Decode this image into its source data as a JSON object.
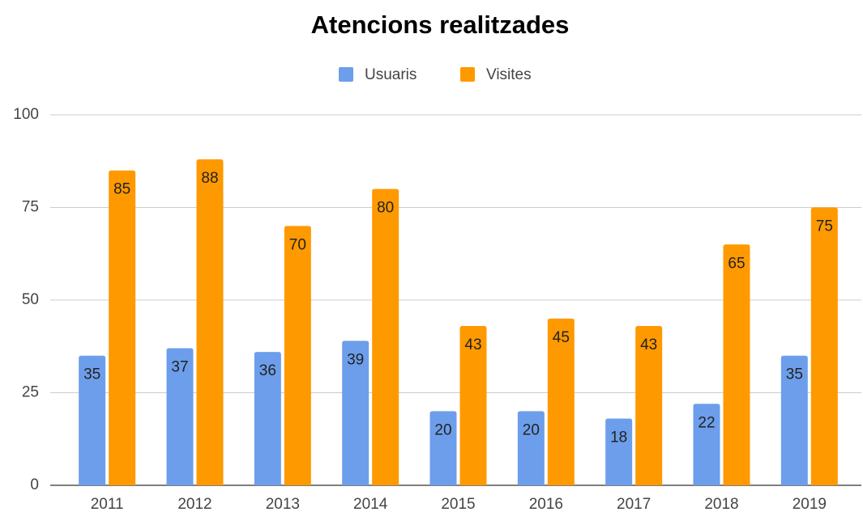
{
  "chart_data": {
    "type": "bar",
    "title": "Atencions realitzades",
    "categories": [
      "2011",
      "2012",
      "2013",
      "2014",
      "2015",
      "2016",
      "2017",
      "2018",
      "2019"
    ],
    "series": [
      {
        "name": "Usuaris",
        "color": "#6d9eeb",
        "values": [
          35,
          37,
          36,
          39,
          20,
          20,
          18,
          22,
          35
        ]
      },
      {
        "name": "Visites",
        "color": "#ff9900",
        "values": [
          85,
          88,
          70,
          80,
          43,
          45,
          43,
          65,
          75
        ]
      }
    ],
    "ylim": [
      0,
      100
    ],
    "yticks": [
      0,
      25,
      50,
      75,
      100
    ],
    "grid": true,
    "legend": "top"
  }
}
